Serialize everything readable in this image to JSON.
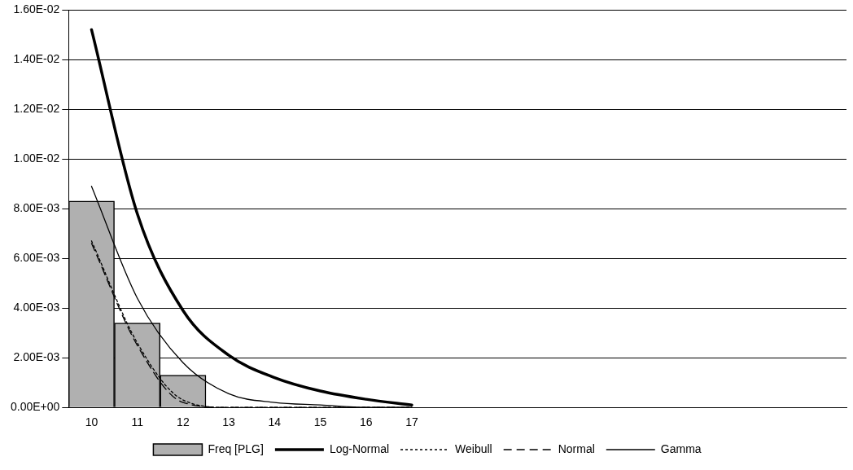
{
  "chart_data": {
    "type": "bar",
    "categories": [
      "10",
      "11",
      "12",
      "13",
      "14",
      "15",
      "16",
      "17",
      null,
      null,
      null,
      null,
      null,
      null,
      null,
      null,
      null
    ],
    "series": [
      {
        "name": "Freq [PLG]",
        "color": "#b0b0b0",
        "values": [
          0.0083,
          0.0034,
          0.0013,
          0,
          0,
          0,
          0,
          0,
          null,
          null,
          null,
          null,
          null,
          null,
          null,
          null,
          null
        ]
      },
      {
        "name": "Log-Normal",
        "type": "line",
        "color": "#000000",
        "line_style": "solid",
        "values": [
          0.0152,
          0.0078,
          0.0039,
          0.0021,
          0.0012,
          0.00066,
          0.00033,
          0.0001,
          null,
          null,
          null,
          null,
          null,
          null,
          null,
          null,
          null
        ]
      },
      {
        "name": "Weibull",
        "type": "line",
        "color": "#000000",
        "line_style": "dotted",
        "values": [
          0.0067,
          0.0026,
          0.0003,
          0,
          0,
          0,
          0,
          0,
          null,
          null,
          null,
          null,
          null,
          null,
          null,
          null,
          null
        ]
      },
      {
        "name": "Normal",
        "type": "line",
        "color": "#000000",
        "line_style": "dashed",
        "values": [
          0.0066,
          0.0025,
          0.0002,
          0,
          0,
          0,
          0,
          0,
          null,
          null,
          null,
          null,
          null,
          null,
          null,
          null,
          null
        ]
      },
      {
        "name": "Gamma",
        "type": "line",
        "color": "#000000",
        "line_style": "solid",
        "values": [
          0.0089,
          0.0044,
          0.0018,
          0.00055,
          0.0002,
          0.0001,
          0,
          0,
          null,
          null,
          null,
          null,
          null,
          null,
          null,
          null,
          null
        ]
      }
    ],
    "ylim": [
      0,
      0.016
    ],
    "yticks": [
      {
        "value": 0,
        "label": "0.00E+00"
      },
      {
        "value": 0.002,
        "label": "2.00E-03"
      },
      {
        "value": 0.004,
        "label": "4.00E-03"
      },
      {
        "value": 0.006,
        "label": "6.00E-03"
      },
      {
        "value": 0.008,
        "label": "8.00E-03"
      },
      {
        "value": 0.01,
        "label": "1.00E-02"
      },
      {
        "value": 0.012,
        "label": "1.20E-02"
      },
      {
        "value": 0.014,
        "label": "1.40E-02"
      },
      {
        "value": 0.016,
        "label": "1.60E-02"
      }
    ],
    "grid": "y",
    "legend": "bottom",
    "marker": "none"
  }
}
